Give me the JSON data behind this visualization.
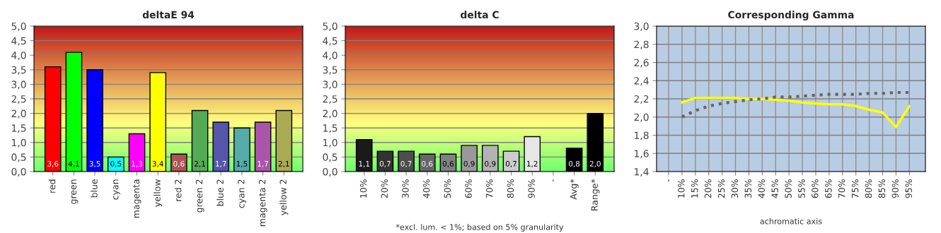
{
  "chart_data": [
    {
      "type": "bar",
      "title": "deltaE 94",
      "categories": [
        "red",
        "green",
        "blue",
        "cyan",
        "magenta",
        "yellow",
        "red 2",
        "green 2",
        "blue 2",
        "cyan 2",
        "magenta 2",
        "yellow 2"
      ],
      "values": [
        3.6,
        4.1,
        3.5,
        0.5,
        1.3,
        3.4,
        0.6,
        2.1,
        1.7,
        1.5,
        1.7,
        2.1
      ],
      "colors": [
        "#ff0000",
        "#00ff00",
        "#0000ff",
        "#00ffff",
        "#ff00ff",
        "#ffff00",
        "#aa5555",
        "#55aa55",
        "#5555aa",
        "#55aaaa",
        "#aa55aa",
        "#aaaa55"
      ],
      "value_labels": [
        "3,6",
        "4,1",
        "3,5",
        "0,5",
        "1,3",
        "3,4",
        "0,6",
        "2,1",
        "1,7",
        "1,5",
        "1,7",
        "2,1"
      ],
      "ylim": [
        0,
        5
      ],
      "yticks": [
        {
          "value": 0,
          "label": "0,0"
        },
        {
          "value": 0.5,
          "label": "0,5"
        },
        {
          "value": 1,
          "label": "1,0"
        },
        {
          "value": 1.5,
          "label": "1,5"
        },
        {
          "value": 2,
          "label": "2,0"
        },
        {
          "value": 2.5,
          "label": "2,5"
        },
        {
          "value": 3,
          "label": "3,0"
        },
        {
          "value": 3.5,
          "label": "3,5"
        },
        {
          "value": 4,
          "label": "4,0"
        },
        {
          "value": 4.5,
          "label": "4,5"
        },
        {
          "value": 5,
          "label": "5,0"
        }
      ],
      "grid": "y"
    },
    {
      "type": "bar",
      "title": "delta C",
      "categories": [
        "10%",
        "20%",
        "30%",
        "40%",
        "50%",
        "60%",
        "70%",
        "80%",
        "90%",
        "-",
        "Avg*",
        "Range*"
      ],
      "values": [
        1.1,
        0.7,
        0.7,
        0.6,
        0.6,
        0.9,
        0.9,
        0.7,
        1.2,
        null,
        0.8,
        2.0
      ],
      "colors": [
        "#1a1a1a",
        "#333333",
        "#4d4d4d",
        "#666666",
        "#808080",
        "#999999",
        "#b3b3b3",
        "#cccccc",
        "#e6e6e6",
        "#000000",
        "#000000",
        "#000000"
      ],
      "value_labels": [
        "1,1",
        "0,7",
        "0,7",
        "0,6",
        "0,6",
        "0,9",
        "0,9",
        "0,7",
        "1,2",
        null,
        "0,8",
        "2,0"
      ],
      "ylim": [
        0,
        5
      ],
      "yticks": [
        {
          "value": 0,
          "label": "0,0"
        },
        {
          "value": 0.5,
          "label": "0,5"
        },
        {
          "value": 1,
          "label": "1,0"
        },
        {
          "value": 1.5,
          "label": "1,5"
        },
        {
          "value": 2,
          "label": "2,0"
        },
        {
          "value": 2.5,
          "label": "2,5"
        },
        {
          "value": 3,
          "label": "3,0"
        },
        {
          "value": 3.5,
          "label": "3,5"
        },
        {
          "value": 4,
          "label": "4,0"
        },
        {
          "value": 4.5,
          "label": "4,5"
        },
        {
          "value": 5,
          "label": "5,0"
        }
      ],
      "grid": "y",
      "annotations": [
        "*excl. lum. < 1%; based on 5% granularity"
      ]
    },
    {
      "type": "line",
      "title": "Corresponding Gamma",
      "xlabel": "achromatic axis",
      "categories": [
        "-",
        "10%",
        "15%",
        "20%",
        "25%",
        "30%",
        "35%",
        "40%",
        "45%",
        "50%",
        "55%",
        "60%",
        "65%",
        "70%",
        "75%",
        "80%",
        "85%",
        "90%",
        "95%"
      ],
      "series": [
        {
          "color": "#ffff00",
          "line_style": "solid",
          "values": [
            null,
            2.16,
            2.21,
            2.21,
            2.21,
            2.21,
            2.2,
            2.2,
            2.19,
            2.18,
            2.16,
            2.15,
            2.14,
            2.14,
            2.12,
            2.08,
            2.05,
            1.89,
            2.12
          ]
        },
        {
          "color": "#666666",
          "line_style": "dotted",
          "values": [
            null,
            2.0,
            2.07,
            2.12,
            2.15,
            2.17,
            2.19,
            2.2,
            2.22,
            2.22,
            2.23,
            2.24,
            2.25,
            2.25,
            2.25,
            2.26,
            2.26,
            2.27,
            2.27
          ]
        }
      ],
      "ylim": [
        1.4,
        3.0
      ],
      "yticks": [
        {
          "value": 1.4,
          "label": "1,4"
        },
        {
          "value": 1.6,
          "label": "1,6"
        },
        {
          "value": 1.8,
          "label": "1,8"
        },
        {
          "value": 2.0,
          "label": "2,0"
        },
        {
          "value": 2.2,
          "label": "2,2"
        },
        {
          "value": 2.4,
          "label": "2,4"
        },
        {
          "value": 2.6,
          "label": "2,6"
        },
        {
          "value": 2.8,
          "label": "2,8"
        },
        {
          "value": 3.0,
          "label": "3,0"
        }
      ],
      "grid": true
    }
  ]
}
